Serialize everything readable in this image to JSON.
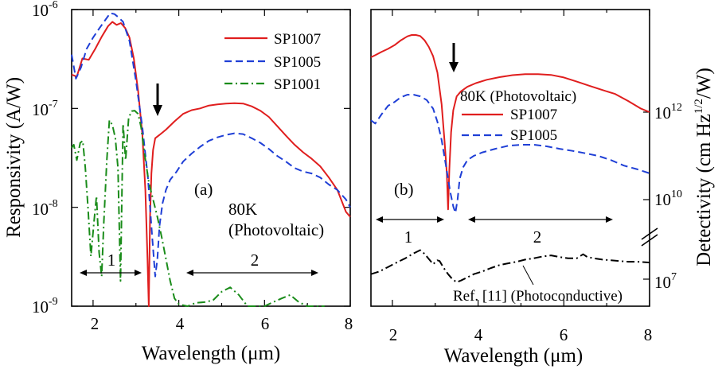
{
  "colors": {
    "red": "#e01e1e",
    "blue": "#1f3fd6",
    "green": "#1a8c1a",
    "black": "#000000"
  },
  "chart_data": [
    {
      "panel": "(a)",
      "type": "line",
      "xlabel": "Wavelength (μm)",
      "ylabel": "Responsivity (A/W)",
      "xlim": [
        1.5,
        8
      ],
      "ylim": [
        1e-09,
        1e-06
      ],
      "yscale": "log",
      "x_ticks": [
        "2",
        "4",
        "6",
        "8"
      ],
      "y_ticks": [
        {
          "value": 1e-06,
          "base": "10",
          "exp": "-6"
        },
        {
          "value": 1e-07,
          "base": "10",
          "exp": "-7"
        },
        {
          "value": 1e-08,
          "base": "10",
          "exp": "-8"
        },
        {
          "value": 1e-09,
          "base": "10",
          "exp": "-9"
        }
      ],
      "legend_position": "top-right",
      "series": [
        {
          "name": "SP1007",
          "color": "#e01e1e",
          "dash": "solid",
          "x": [
            1.5,
            1.62,
            1.75,
            1.9,
            2.05,
            2.2,
            2.35,
            2.45,
            2.55,
            2.65,
            2.75,
            2.85,
            2.95,
            3.05,
            3.15,
            3.22,
            3.27,
            3.3,
            3.33,
            3.36,
            3.4,
            3.45,
            3.55,
            3.7,
            3.9,
            4.1,
            4.3,
            4.5,
            4.7,
            4.9,
            5.1,
            5.3,
            5.5,
            5.7,
            5.9,
            6.1,
            6.3,
            6.5,
            6.7,
            6.9,
            7.1,
            7.3,
            7.5,
            7.7,
            7.9,
            8.0
          ],
          "y": [
            2.2e-07,
            2.1e-07,
            3.2e-07,
            3.1e-07,
            4e-07,
            5.3e-07,
            6.8e-07,
            7.5e-07,
            7e-07,
            7.3e-07,
            6.5e-07,
            5.2e-07,
            3.2e-07,
            1.5e-07,
            5.5e-08,
            1.5e-08,
            3e-09,
            1e-09,
            8e-09,
            2.2e-08,
            3.8e-08,
            5e-08,
            5.4e-08,
            6.1e-08,
            7.4e-08,
            8.8e-08,
            9.6e-08,
            1e-07,
            1.07e-07,
            1.1e-07,
            1.12e-07,
            1.13e-07,
            1.12e-07,
            1.05e-07,
            9.5e-08,
            8.2e-08,
            6.6e-08,
            5.3e-08,
            4.3e-08,
            3.6e-08,
            3.1e-08,
            2.6e-08,
            2e-08,
            1.5e-08,
            9e-09,
            8e-09
          ]
        },
        {
          "name": "SP1005",
          "color": "#1f3fd6",
          "dash": "dashed",
          "x": [
            1.5,
            1.6,
            1.72,
            1.85,
            2.0,
            2.15,
            2.3,
            2.4,
            2.5,
            2.6,
            2.7,
            2.85,
            3.0,
            3.15,
            3.28,
            3.38,
            3.45,
            3.5,
            3.55,
            3.62,
            3.7,
            3.8,
            3.95,
            4.1,
            4.3,
            4.5,
            4.7,
            4.9,
            5.1,
            5.3,
            5.5,
            5.7,
            5.9,
            6.1,
            6.3,
            6.5,
            6.7,
            6.9,
            7.1,
            7.3,
            7.5,
            7.7,
            7.9,
            8.0
          ],
          "y": [
            3.5e-07,
            2e-07,
            2.6e-07,
            4e-07,
            5.2e-07,
            6.5e-07,
            8e-07,
            9.2e-07,
            9e-07,
            8.3e-07,
            7.5e-07,
            4.8e-07,
            1.9e-07,
            6.5e-08,
            2e-08,
            5e-09,
            2e-09,
            3e-09,
            6.5e-09,
            1.1e-08,
            1.5e-08,
            1.9e-08,
            2.3e-08,
            2.9e-08,
            3.5e-08,
            4.1e-08,
            4.7e-08,
            5.1e-08,
            5.4e-08,
            5.6e-08,
            5.5e-08,
            5e-08,
            4.5e-08,
            3.9e-08,
            3.3e-08,
            2.9e-08,
            2.5e-08,
            2.3e-08,
            2.2e-08,
            2e-08,
            1.7e-08,
            1.5e-08,
            1.2e-08,
            1e-08
          ]
        },
        {
          "name": "SP1001",
          "color": "#1a8c1a",
          "dash": "dashdot",
          "x": [
            1.5,
            1.55,
            1.62,
            1.7,
            1.76,
            1.82,
            1.88,
            1.95,
            2.02,
            2.08,
            2.14,
            2.2,
            2.25,
            2.32,
            2.38,
            2.45,
            2.52,
            2.58,
            2.64,
            2.7,
            2.76,
            2.83,
            2.9,
            2.97,
            3.05,
            3.12,
            3.2,
            3.3,
            3.4,
            3.5,
            3.6,
            3.7,
            3.8,
            3.9,
            4.0,
            4.2,
            4.4,
            4.6,
            4.8,
            5.0,
            5.2,
            5.4,
            5.6,
            5.8,
            6.0,
            6.2,
            6.4,
            6.6,
            6.8,
            7.0,
            7.2,
            7.4
          ],
          "y": [
            4e-08,
            4.3e-08,
            3e-08,
            4.5e-08,
            4.7e-08,
            2.5e-08,
            1e-08,
            3.2e-09,
            7e-09,
            1.3e-08,
            3.5e-09,
            2e-09,
            7e-09,
            3e-08,
            7.6e-08,
            6.8e-08,
            5e-08,
            2.5e-08,
            1.8e-09,
            7e-08,
            3e-08,
            8e-08,
            9.4e-08,
            9.5e-08,
            8.8e-08,
            6.5e-08,
            3.5e-08,
            1.8e-08,
            1.2e-08,
            8e-09,
            5e-09,
            3e-09,
            1.8e-09,
            1.2e-09,
            1.05e-09,
            1e-09,
            1.08e-09,
            1.1e-09,
            1.15e-09,
            1.4e-09,
            1.55e-09,
            1.3e-09,
            1e-09,
            1e-09,
            1e-09,
            1.1e-09,
            1.2e-09,
            1.3e-09,
            1.1e-09,
            1e-09,
            1e-09,
            1e-09
          ]
        }
      ],
      "annotations": {
        "panel_label": "(a)",
        "condition_line1": "80K",
        "condition_line2": "(Photovoltaic)",
        "region1": "1",
        "region2": "2"
      }
    },
    {
      "panel": "(b)",
      "type": "line",
      "xlabel": "Wavelength (μm)",
      "ylabel": "Detectivity (cm Hz^1/2/W)",
      "xlim": [
        1.5,
        8
      ],
      "y_ticks": [
        {
          "base": "10",
          "exp": "12"
        },
        {
          "base": "10",
          "exp": "10"
        },
        {
          "base": "10",
          "exp": "7"
        }
      ],
      "yscale": "log (broken axis)",
      "legend_position": "center",
      "series": [
        {
          "name": "SP1007",
          "color": "#e01e1e",
          "dash": "solid",
          "x": [
            1.5,
            1.6,
            1.75,
            1.9,
            2.05,
            2.2,
            2.35,
            2.45,
            2.55,
            2.65,
            2.75,
            2.85,
            2.95,
            3.05,
            3.15,
            3.22,
            3.27,
            3.3,
            3.33,
            3.37,
            3.42,
            3.5,
            3.6,
            3.75,
            3.95,
            4.2,
            4.5,
            4.8,
            5.1,
            5.4,
            5.7,
            6.0,
            6.3,
            6.6,
            6.9,
            7.2,
            7.5,
            7.8,
            8.0
          ],
          "y": [
            18000000000000.0,
            20000000000000.0,
            24000000000000.0,
            28000000000000.0,
            34000000000000.0,
            44000000000000.0,
            54000000000000.0,
            58000000000000.0,
            58000000000000.0,
            55000000000000.0,
            44000000000000.0,
            31000000000000.0,
            19000000000000.0,
            8000000000000.0,
            1500000000000.0,
            200000000000.0,
            40000000000.0,
            6000000000.0,
            50000000000.0,
            350000000000.0,
            1100000000000.0,
            2300000000000.0,
            3000000000000.0,
            3800000000000.0,
            4600000000000.0,
            5500000000000.0,
            6300000000000.0,
            7000000000000.0,
            7400000000000.0,
            7400000000000.0,
            7100000000000.0,
            6200000000000.0,
            5000000000000.0,
            4000000000000.0,
            3200000000000.0,
            2600000000000.0,
            1800000000000.0,
            1200000000000.0,
            1000000000000.0
          ]
        },
        {
          "name": "SP1005",
          "color": "#1f3fd6",
          "dash": "dashed",
          "x": [
            1.5,
            1.6,
            1.75,
            1.9,
            2.05,
            2.2,
            2.35,
            2.5,
            2.65,
            2.8,
            2.95,
            3.05,
            3.15,
            3.25,
            3.35,
            3.42,
            3.47,
            3.52,
            3.57,
            3.65,
            3.75,
            3.9,
            4.1,
            4.4,
            4.7,
            5.0,
            5.3,
            5.6,
            5.9,
            6.2,
            6.5,
            6.8,
            7.1,
            7.4,
            7.7,
            8.0
          ],
          "y": [
            650000000000.0,
            550000000000.0,
            900000000000.0,
            1400000000000.0,
            1700000000000.0,
            2200000000000.0,
            2500000000000.0,
            2500000000000.0,
            2300000000000.0,
            1900000000000.0,
            1200000000000.0,
            600000000000.0,
            230000000000.0,
            60000000000.0,
            15000000000.0,
            7000000000.0,
            5000000000.0,
            10000000000.0,
            30000000000.0,
            55000000000.0,
            80000000000.0,
            100000000000.0,
            120000000000.0,
            145000000000.0,
            170000000000.0,
            180000000000.0,
            180000000000.0,
            165000000000.0,
            145000000000.0,
            130000000000.0,
            115000000000.0,
            100000000000.0,
            80000000000.0,
            60000000000.0,
            50000000000.0,
            40000000000.0
          ]
        },
        {
          "name": "Ref. [11] (Photoconductive)",
          "color": "#000000",
          "dash": "dashdot",
          "x": [
            1.5,
            1.7,
            1.9,
            2.1,
            2.3,
            2.5,
            2.65,
            2.75,
            2.85,
            2.95,
            3.05,
            3.1,
            3.2,
            3.3,
            3.4,
            3.5,
            3.6,
            3.75,
            3.9,
            4.1,
            4.3,
            4.5,
            4.7,
            4.9,
            5.1,
            5.3,
            5.5,
            5.7,
            5.9,
            6.1,
            6.3,
            6.45,
            6.55,
            6.7,
            6.9,
            7.1,
            7.3,
            7.5,
            7.7,
            8.0
          ],
          "y": [
            13000000.0,
            15000000.0,
            19000000.0,
            24000000.0,
            30000000.0,
            39000000.0,
            46000000.0,
            38000000.0,
            29000000.0,
            22000000.0,
            27000000.0,
            26000000.0,
            18000000.0,
            13000000.0,
            10000000.0,
            8500000.0,
            9300000.0,
            11000000.0,
            13000000.0,
            15000000.0,
            18000000.0,
            21000000.0,
            23000000.0,
            25000000.0,
            28000000.0,
            30000000.0,
            33000000.0,
            35000000.0,
            32000000.0,
            30000000.0,
            30000000.0,
            37000000.0,
            32000000.0,
            30000000.0,
            28000000.0,
            27000000.0,
            26000000.0,
            25000000.0,
            25000000.0,
            24000000.0
          ]
        }
      ],
      "annotations": {
        "panel_label": "(b)",
        "condition": "80K (Photovoltaic)",
        "region1": "1",
        "region2": "2",
        "ref_label": "Ref. [11] (Photoconductive)"
      }
    }
  ]
}
